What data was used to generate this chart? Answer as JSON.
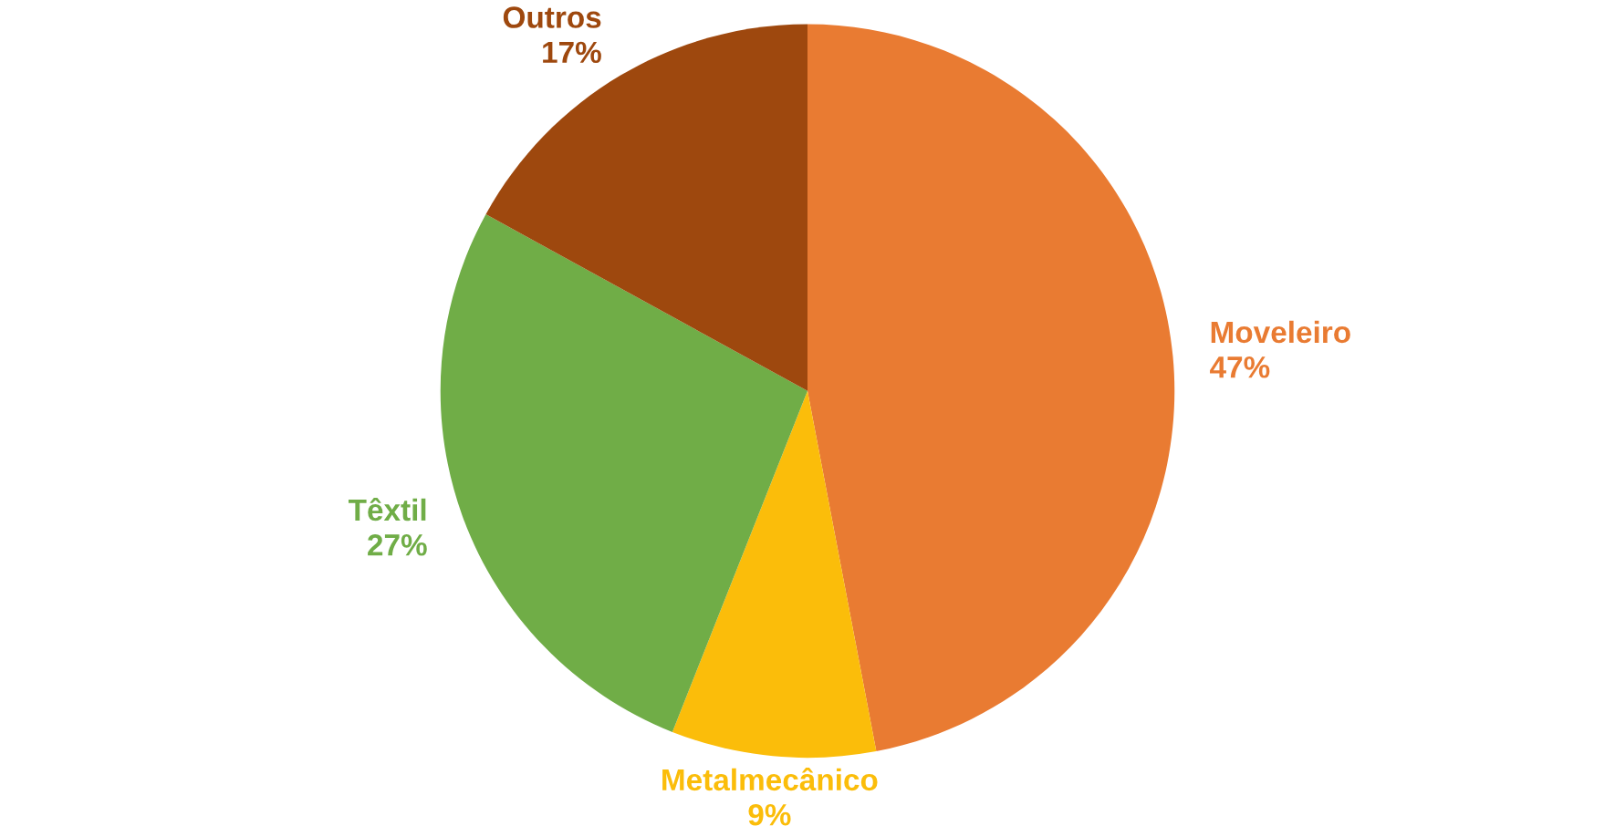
{
  "chart_data": {
    "type": "pie",
    "categories": [
      "Moveleiro",
      "Metalmecânico",
      "Têxtil",
      "Outros"
    ],
    "values": [
      47,
      9,
      27,
      17
    ],
    "value_labels": [
      "47%",
      "9%",
      "27%",
      "17%"
    ],
    "colors": [
      "#e97b32",
      "#fbbd0a",
      "#70ad47",
      "#9e480e"
    ]
  }
}
